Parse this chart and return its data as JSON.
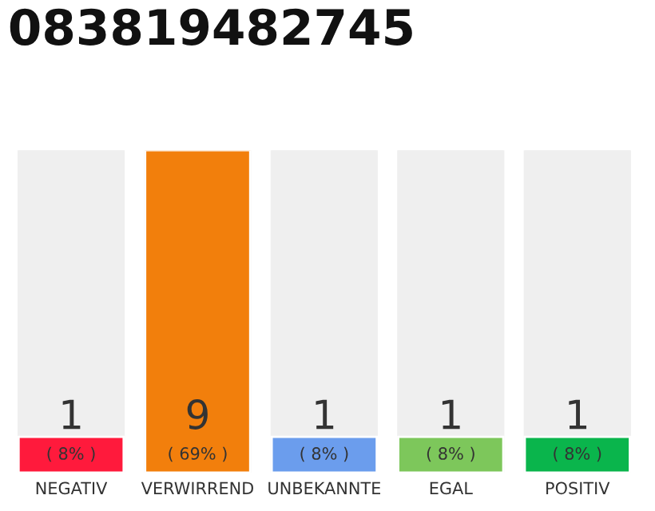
{
  "chart_data": {
    "type": "bar",
    "title": "083819482745",
    "categories": [
      "NEGATIV",
      "VERWIRREND",
      "UNBEKANNTE",
      "EGAL",
      "POSITIV"
    ],
    "values": [
      1,
      9,
      1,
      1,
      1
    ],
    "colors": [
      "#ff1a3c",
      "#f27f0c",
      "#6b9ded",
      "#7dc75b",
      "#0ab54c"
    ],
    "data_labels": true,
    "annotations": [
      "( 8% )",
      "( 69% )",
      "( 8% )",
      "( 8% )",
      "( 8% )"
    ],
    "grid": false,
    "legend": false
  }
}
